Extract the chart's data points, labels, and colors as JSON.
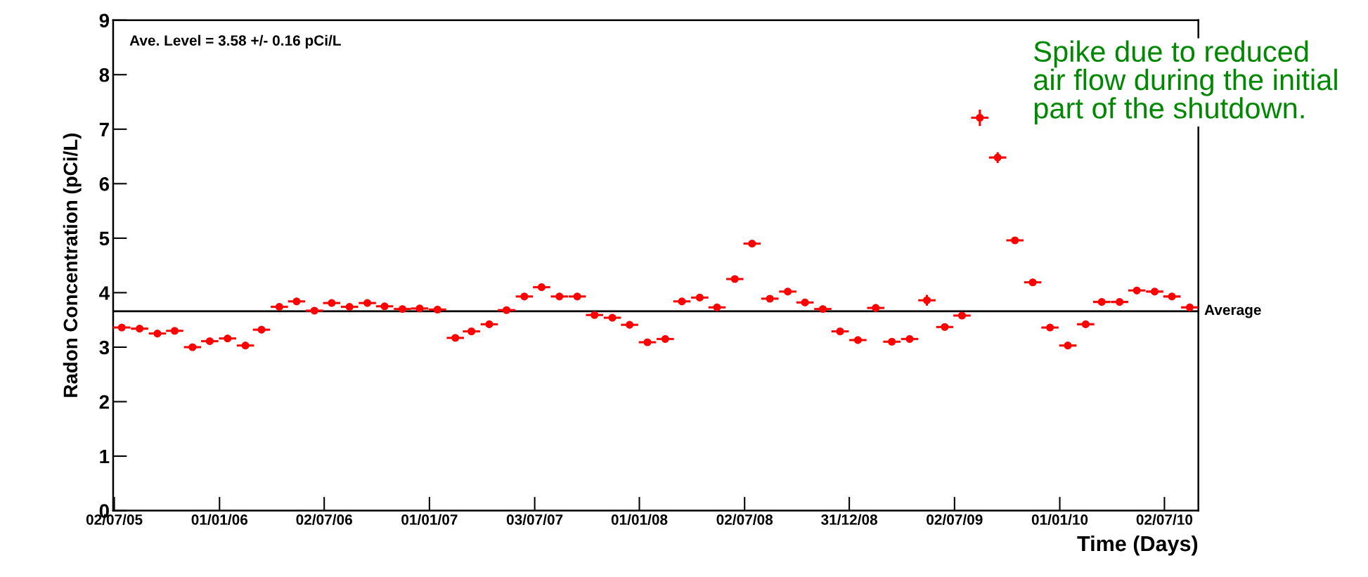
{
  "chart_data": {
    "type": "scatter",
    "xlabel": "Time (Days)",
    "ylabel": "Radon Concentration (pCi/L)",
    "x": [
      "2005-07-15",
      "2005-08-15",
      "2005-09-15",
      "2005-10-15",
      "2005-11-15",
      "2005-12-15",
      "2006-01-15",
      "2006-02-15",
      "2006-03-15",
      "2006-04-15",
      "2006-05-15",
      "2006-06-15",
      "2006-07-15",
      "2006-08-15",
      "2006-09-15",
      "2006-10-15",
      "2006-11-15",
      "2006-12-15",
      "2007-01-15",
      "2007-02-15",
      "2007-03-15",
      "2007-04-15",
      "2007-05-15",
      "2007-06-15",
      "2007-07-15",
      "2007-08-15",
      "2007-09-15",
      "2007-10-15",
      "2007-11-15",
      "2007-12-15",
      "2008-01-15",
      "2008-02-15",
      "2008-03-15",
      "2008-04-15",
      "2008-05-15",
      "2008-06-15",
      "2008-07-15",
      "2008-08-15",
      "2008-09-15",
      "2008-10-15",
      "2008-11-15",
      "2008-12-15",
      "2009-01-15",
      "2009-02-15",
      "2009-03-15",
      "2009-04-15",
      "2009-05-15",
      "2009-06-15",
      "2009-07-15",
      "2009-08-15",
      "2009-09-15",
      "2009-10-15",
      "2009-11-15",
      "2009-12-15",
      "2010-01-15",
      "2010-02-15",
      "2010-03-15",
      "2010-04-15",
      "2010-05-15",
      "2010-06-15",
      "2010-07-15",
      "2010-08-15"
    ],
    "series": [
      {
        "color": "#ff0000",
        "values": [
          3.36,
          3.34,
          3.25,
          3.3,
          3.0,
          3.11,
          3.16,
          3.03,
          3.32,
          3.74,
          3.84,
          3.67,
          3.81,
          3.74,
          3.81,
          3.75,
          3.7,
          3.71,
          3.69,
          3.17,
          3.29,
          3.42,
          3.68,
          3.93,
          4.1,
          3.93,
          3.93,
          3.59,
          3.54,
          3.41,
          3.09,
          3.15,
          3.84,
          3.91,
          3.73,
          4.25,
          4.9,
          3.89,
          4.02,
          3.82,
          3.7,
          3.29,
          3.13,
          3.72,
          3.1,
          3.15,
          3.86,
          3.37,
          3.58,
          7.21,
          6.48,
          4.96,
          4.19,
          3.36,
          3.03,
          3.42,
          3.83,
          3.83,
          4.04,
          4.02,
          3.93,
          3.73
        ],
        "errors": [
          null,
          null,
          null,
          null,
          null,
          null,
          null,
          null,
          null,
          null,
          null,
          null,
          null,
          null,
          null,
          null,
          null,
          null,
          null,
          null,
          null,
          null,
          null,
          null,
          null,
          null,
          null,
          null,
          null,
          null,
          null,
          null,
          null,
          null,
          null,
          null,
          0.05,
          null,
          null,
          null,
          null,
          null,
          null,
          0.07,
          null,
          null,
          0.1,
          null,
          null,
          0.15,
          0.1,
          null,
          null,
          null,
          null,
          null,
          null,
          null,
          null,
          null,
          null,
          null
        ],
        "xerrors": [
          15,
          15,
          15,
          15,
          15,
          15,
          15,
          15,
          15,
          15,
          15,
          15,
          15,
          15,
          15,
          15,
          15,
          15,
          15,
          15,
          15,
          15,
          15,
          15,
          15,
          15,
          15,
          15,
          15,
          15,
          15,
          15,
          15,
          15,
          15,
          15,
          15,
          15,
          15,
          15,
          15,
          15,
          15,
          15,
          15,
          15,
          15,
          15,
          15,
          15,
          15,
          15,
          15,
          15,
          15,
          15,
          15,
          15,
          15,
          15,
          15,
          15
        ]
      }
    ],
    "marker": "circle",
    "grid": false,
    "xlim": [
      "2005-06-30",
      "2010-08-30"
    ],
    "xticks": [
      {
        "value": "2005-07-02",
        "label": "02/07/05"
      },
      {
        "value": "2006-01-01",
        "label": "01/01/06"
      },
      {
        "value": "2006-07-02",
        "label": "02/07/06"
      },
      {
        "value": "2007-01-01",
        "label": "01/01/07"
      },
      {
        "value": "2007-07-03",
        "label": "03/07/07"
      },
      {
        "value": "2008-01-01",
        "label": "01/01/08"
      },
      {
        "value": "2008-07-02",
        "label": "02/07/08"
      },
      {
        "value": "2008-12-31",
        "label": "31/12/08"
      },
      {
        "value": "2009-07-02",
        "label": "02/07/09"
      },
      {
        "value": "2010-01-01",
        "label": "01/01/10"
      },
      {
        "value": "2010-07-02",
        "label": "02/07/10"
      }
    ],
    "ylim": [
      0,
      9
    ],
    "yticks": [
      0,
      1,
      2,
      3,
      4,
      5,
      6,
      7,
      8,
      9
    ],
    "ref_lines": [
      {
        "axis": "y",
        "value": 3.66,
        "label": "Average",
        "color": "#000000"
      }
    ],
    "annotations": [
      "Ave. Level = 3.58 +/- 0.16 pCi/L",
      "Spike due to reduced\nair flow during the initial\npart of the shutdown."
    ]
  }
}
